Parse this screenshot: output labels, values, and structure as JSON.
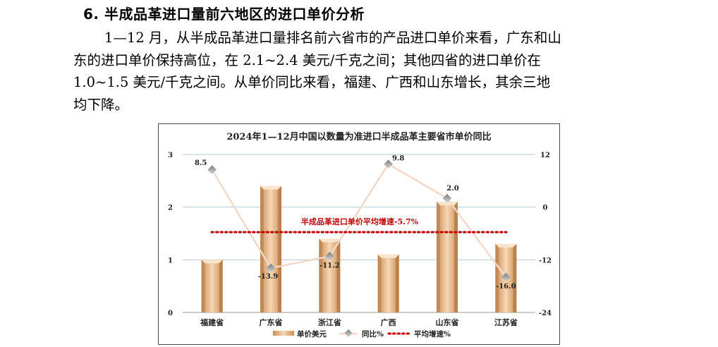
{
  "section": {
    "heading": "6. 半成品革进口量前六地区的进口单价分析",
    "paragraph_lines": [
      "1—12 月，从半成品革进口量排名前六省市的产品进口单价来看，广东和山",
      "东的进口单价保持高位，在 2.1~2.4 美元/千克之间；其他四省的进口单价在",
      "1.0~1.5 美元/千克之间。从单价同比来看，福建、广西和山东增长，其余三地",
      "均下降。"
    ]
  },
  "chart_data": {
    "type": "bar",
    "title": "2024年1—12月中国以数量为准进口半成品革主要省市单价同比",
    "categories": [
      "福建省",
      "广东省",
      "浙江省",
      "广西",
      "山东省",
      "江苏省"
    ],
    "series": [
      {
        "name": "单价美元",
        "kind": "bar",
        "axis": "left",
        "values": [
          1.0,
          2.4,
          1.4,
          1.1,
          2.1,
          1.3
        ],
        "color": "#e8b888"
      },
      {
        "name": "同比%",
        "kind": "line",
        "axis": "right",
        "values": [
          8.5,
          -13.9,
          -11.2,
          9.8,
          2.0,
          -16.0
        ],
        "labels": [
          "8.5",
          "-13.9",
          "-11.2",
          "9.8",
          "2.0",
          "-16.0"
        ],
        "color": "#f2d8c8"
      },
      {
        "name": "平均增速%",
        "kind": "reference-line",
        "axis": "right",
        "value": -5.7,
        "color": "#c00000"
      }
    ],
    "annotation": "半成品革进口单价平均增速-5.7%",
    "left_axis": {
      "min": 0,
      "max": 3,
      "ticks": [
        "0",
        "1",
        "2",
        "3"
      ]
    },
    "right_axis": {
      "min": -24,
      "max": 12,
      "ticks": [
        "-24",
        "-12",
        "0",
        "12"
      ]
    },
    "grid": true,
    "legend_position": "bottom"
  }
}
